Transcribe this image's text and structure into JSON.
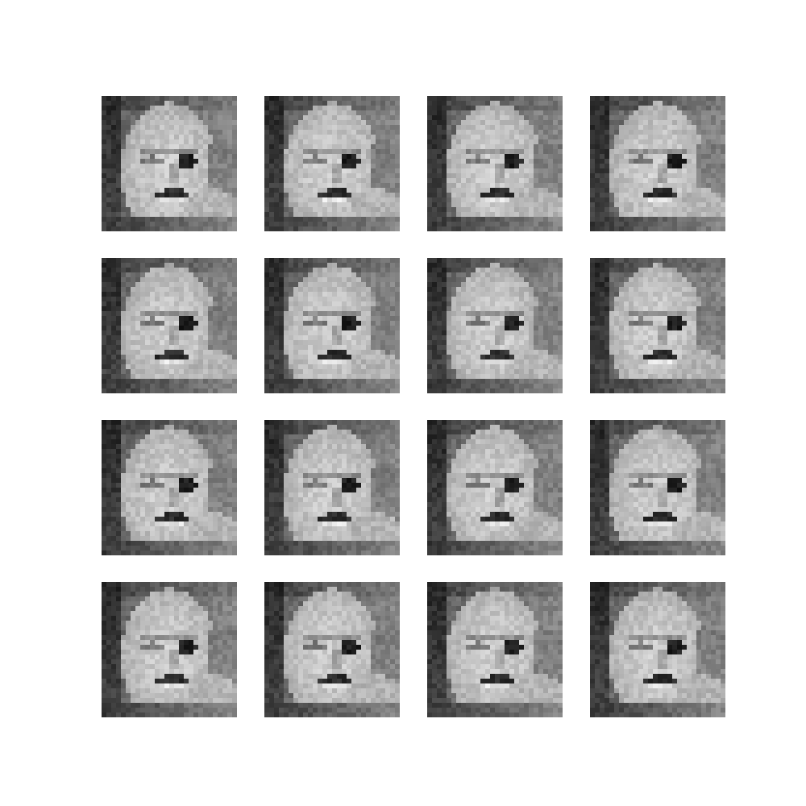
{
  "figure": {
    "rows": 4,
    "cols": 4,
    "palette": "grayscale",
    "background": "#ffffff",
    "tiles": [
      {
        "subject": "face",
        "variant": 0
      },
      {
        "subject": "face",
        "variant": 1
      },
      {
        "subject": "face",
        "variant": 2
      },
      {
        "subject": "face",
        "variant": 3
      },
      {
        "subject": "face",
        "variant": 4
      },
      {
        "subject": "face",
        "variant": 5
      },
      {
        "subject": "face",
        "variant": 6
      },
      {
        "subject": "face",
        "variant": 7
      },
      {
        "subject": "face",
        "variant": 8
      },
      {
        "subject": "face",
        "variant": 9
      },
      {
        "subject": "face",
        "variant": 10
      },
      {
        "subject": "face",
        "variant": 11
      },
      {
        "subject": "face",
        "variant": 12
      },
      {
        "subject": "face",
        "variant": 13
      },
      {
        "subject": "face",
        "variant": 14
      },
      {
        "subject": "face",
        "variant": 15
      }
    ]
  }
}
